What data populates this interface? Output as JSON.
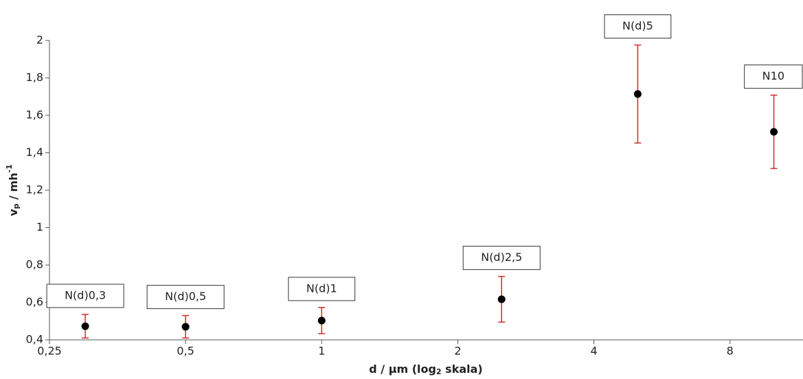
{
  "chart_data": {
    "type": "scatter",
    "x_label": {
      "main": "d / µm (log",
      "sub": "2",
      "rest": " skala)"
    },
    "y_label": {
      "main": "v",
      "sub": "p",
      "rest": " / mh",
      "sup": "-1"
    },
    "x_log_base": 2,
    "xlim": [
      0.25,
      11.6
    ],
    "ylim": [
      0.4,
      2
    ],
    "xticks": [
      {
        "value": 0.25,
        "label": "0,25"
      },
      {
        "value": 0.5,
        "label": "0,5"
      },
      1,
      2,
      4,
      8
    ],
    "yticks": [
      {
        "value": 0.4,
        "label": "0,4"
      },
      {
        "value": 0.6,
        "label": "0,6"
      },
      {
        "value": 0.8,
        "label": "0,8"
      },
      1,
      {
        "value": 1.2,
        "label": "1,2"
      },
      {
        "value": 1.4,
        "label": "1,4"
      },
      {
        "value": 1.6,
        "label": "1,6"
      },
      {
        "value": 1.8,
        "label": "1,8"
      },
      2
    ],
    "series": [
      {
        "color": "#000000",
        "error_color": "#d62728",
        "x": [
          0.3,
          0.5,
          1,
          2.5,
          5,
          10
        ],
        "y": [
          0.473,
          0.47,
          0.503,
          0.617,
          1.714,
          1.512
        ],
        "err": [
          0.063,
          0.06,
          0.07,
          0.122,
          0.262,
          0.196
        ],
        "labels": [
          "N(d)0,3",
          "N(d)0,5",
          "N(d)1",
          "N(d)2,5",
          "N(d)5",
          "N10"
        ]
      }
    ]
  }
}
